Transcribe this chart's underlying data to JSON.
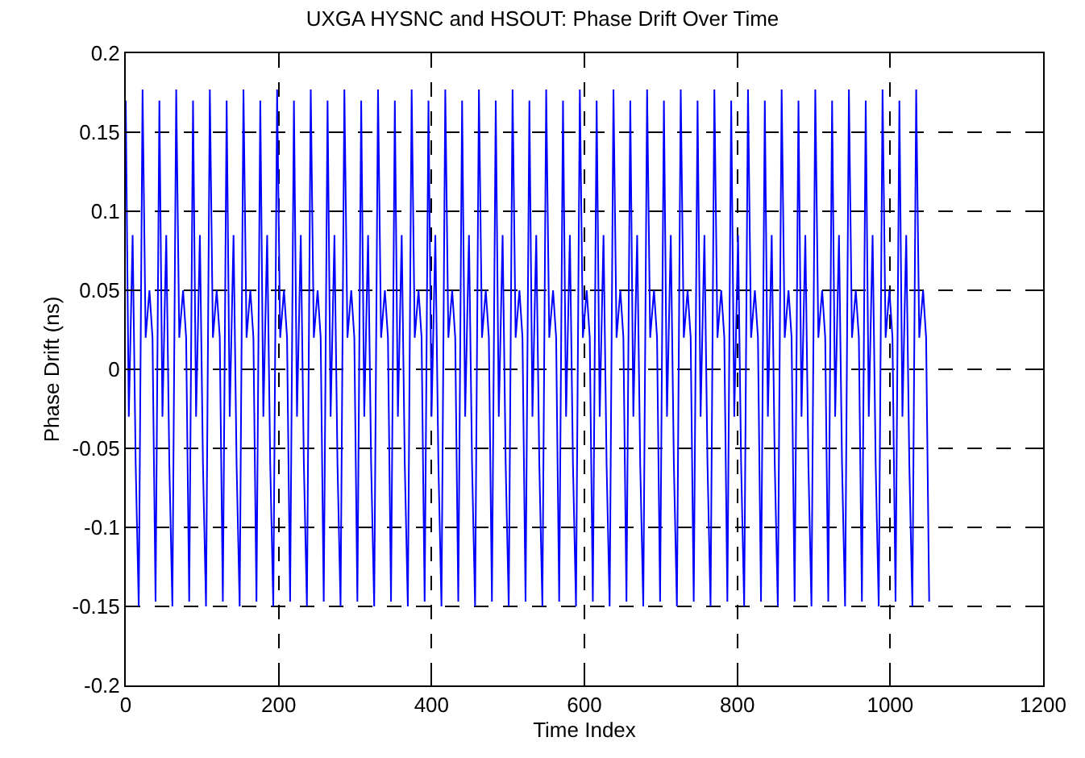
{
  "chart_data": {
    "type": "line",
    "title": "UXGA HYSNC and HSOUT: Phase Drift Over Time",
    "xlabel": "Time Index",
    "ylabel": "Phase Drift (ns)",
    "xlim": [
      0,
      1200
    ],
    "xticks": [
      0,
      200,
      400,
      600,
      800,
      1000,
      1200
    ],
    "ylim": [
      -0.2,
      0.2
    ],
    "yticks": [
      -0.2,
      -0.15,
      -0.1,
      -0.05,
      0,
      0.05,
      0.1,
      0.15,
      0.2
    ],
    "grid": true,
    "marker": "none",
    "line_style": "solid",
    "series": [
      {
        "color": "#0000ff",
        "x": [
          0,
          4,
          9,
          13,
          17,
          22,
          26,
          31,
          35,
          39,
          44,
          48,
          53,
          57,
          61,
          66,
          70,
          75,
          79,
          83,
          88,
          92,
          97,
          101,
          105,
          110,
          114,
          119,
          123,
          127,
          132,
          136,
          141,
          145,
          149,
          154,
          158,
          163,
          167,
          171,
          176,
          180,
          185,
          189,
          193,
          198,
          202,
          207,
          211,
          215,
          220,
          224,
          229,
          233,
          237,
          242,
          246,
          251,
          255,
          259,
          264,
          268,
          273,
          277,
          281,
          286,
          290,
          295,
          299,
          303,
          308,
          312,
          317,
          321,
          325,
          330,
          334,
          339,
          343,
          347,
          352,
          356,
          361,
          365,
          369,
          374,
          378,
          383,
          387,
          391,
          396,
          400,
          405,
          409,
          413,
          418,
          422,
          427,
          431,
          435,
          440,
          444,
          449,
          453,
          457,
          462,
          466,
          471,
          475,
          479,
          484,
          488,
          493,
          497,
          501,
          506,
          510,
          515,
          519,
          523,
          528,
          532,
          537,
          541,
          545,
          550,
          554,
          559,
          563,
          567,
          572,
          576,
          581,
          585,
          589,
          594,
          598,
          603,
          607,
          611,
          616,
          620,
          625,
          629,
          633,
          638,
          642,
          647,
          651,
          655,
          660,
          664,
          669,
          673,
          677,
          682,
          686,
          691,
          695,
          699,
          704,
          708,
          713,
          717,
          721,
          726,
          730,
          735,
          739,
          743,
          748,
          752,
          757,
          761,
          765,
          770,
          774,
          779,
          783,
          787,
          792,
          796,
          801,
          805,
          809,
          814,
          818,
          823,
          827,
          831,
          836,
          840,
          845,
          849,
          853,
          858,
          862,
          867,
          871,
          875,
          880,
          884,
          889,
          893,
          897,
          902,
          906,
          911,
          915,
          919,
          924,
          928,
          933,
          937,
          941,
          946,
          950,
          955,
          959,
          963,
          968,
          972,
          977,
          981,
          985,
          990,
          994,
          999,
          1003,
          1007,
          1012,
          1016,
          1021,
          1025,
          1029,
          1034,
          1038,
          1043,
          1047,
          1051
        ],
        "values": [
          0.17,
          -0.03,
          0.085,
          -0.06,
          -0.15,
          0.177,
          0.02,
          0.05,
          0.02,
          -0.147,
          0.17,
          -0.03,
          0.085,
          -0.06,
          -0.15,
          0.177,
          0.02,
          0.05,
          0.02,
          -0.147,
          0.17,
          -0.03,
          0.085,
          -0.06,
          -0.15,
          0.177,
          0.02,
          0.05,
          0.02,
          -0.147,
          0.17,
          -0.03,
          0.085,
          -0.06,
          -0.15,
          0.177,
          0.02,
          0.05,
          0.02,
          -0.147,
          0.17,
          -0.03,
          0.085,
          -0.06,
          -0.15,
          0.177,
          0.02,
          0.05,
          0.02,
          -0.147,
          0.17,
          -0.03,
          0.085,
          -0.06,
          -0.15,
          0.177,
          0.02,
          0.05,
          0.02,
          -0.147,
          0.17,
          -0.03,
          0.085,
          -0.06,
          -0.15,
          0.177,
          0.02,
          0.05,
          0.02,
          -0.147,
          0.17,
          -0.03,
          0.085,
          -0.06,
          -0.15,
          0.177,
          0.02,
          0.05,
          0.02,
          -0.147,
          0.17,
          -0.03,
          0.085,
          -0.06,
          -0.15,
          0.177,
          0.02,
          0.05,
          0.02,
          -0.147,
          0.17,
          -0.03,
          0.085,
          -0.06,
          -0.15,
          0.177,
          0.02,
          0.05,
          0.02,
          -0.147,
          0.17,
          -0.03,
          0.085,
          -0.06,
          -0.15,
          0.177,
          0.02,
          0.05,
          0.02,
          -0.147,
          0.17,
          -0.03,
          0.085,
          -0.06,
          -0.15,
          0.177,
          0.02,
          0.05,
          0.02,
          -0.147,
          0.17,
          -0.03,
          0.085,
          -0.06,
          -0.15,
          0.177,
          0.02,
          0.05,
          0.02,
          -0.147,
          0.17,
          -0.03,
          0.085,
          -0.06,
          -0.15,
          0.177,
          0.02,
          0.05,
          0.02,
          -0.147,
          0.17,
          -0.03,
          0.085,
          -0.06,
          -0.15,
          0.177,
          0.02,
          0.05,
          0.02,
          -0.147,
          0.17,
          -0.03,
          0.085,
          -0.06,
          -0.15,
          0.177,
          0.02,
          0.05,
          0.02,
          -0.147,
          0.17,
          -0.03,
          0.085,
          -0.06,
          -0.15,
          0.177,
          0.02,
          0.05,
          0.02,
          -0.147,
          0.17,
          -0.03,
          0.085,
          -0.06,
          -0.15,
          0.177,
          0.02,
          0.05,
          0.02,
          -0.147,
          0.17,
          -0.03,
          0.085,
          -0.06,
          -0.15,
          0.177,
          0.02,
          0.05,
          0.02,
          -0.147,
          0.17,
          -0.03,
          0.085,
          -0.06,
          -0.15,
          0.177,
          0.02,
          0.05,
          0.02,
          -0.147,
          0.17,
          -0.03,
          0.085,
          -0.06,
          -0.15,
          0.177,
          0.02,
          0.05,
          0.02,
          -0.147,
          0.17,
          -0.03,
          0.085,
          -0.06,
          -0.15,
          0.177,
          0.02,
          0.05,
          0.02,
          -0.147,
          0.17,
          -0.03,
          0.085,
          -0.06,
          -0.15,
          0.177,
          0.02,
          0.05,
          0.02,
          -0.147,
          0.17,
          -0.03,
          0.085,
          -0.06,
          -0.15,
          0.177,
          0.02,
          0.05,
          0.02,
          -0.147
        ]
      }
    ]
  }
}
